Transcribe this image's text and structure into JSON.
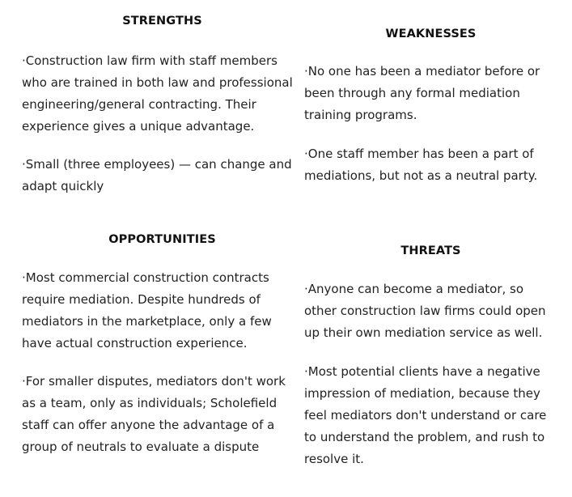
{
  "strengths": {
    "title": "STRENGTHS",
    "items": [
      "·Construction law firm with staff members who are trained in both law and professional engineering/general contracting. Their experience gives a unique advantage.",
      "·Small (three employees) — can change and adapt quickly"
    ]
  },
  "weaknesses": {
    "title": "WEAKNESSES",
    "items": [
      "·No one has been a mediator before or been through any formal mediation training programs.",
      "·One staff member has been a part of mediations, but not as a neutral party."
    ]
  },
  "opportunities": {
    "title": "OPPORTUNITIES",
    "items": [
      "·Most commercial construction contracts require mediation. Despite hundreds of mediators in the marketplace, only a few have actual construction experience.",
      "·For smaller disputes, mediators don't work as a team, only as individuals; Scholefield staff can offer anyone the advantage of a group of neutrals to evaluate a dispute"
    ]
  },
  "threats": {
    "title": "THREATS",
    "items": [
      "·Anyone can become a mediator, so other construction law firms could open up their own mediation service as well.",
      "·Most potential clients have a negative impression of mediation, because they feel mediators don't understand or care to understand the problem, and rush to resolve it."
    ]
  }
}
